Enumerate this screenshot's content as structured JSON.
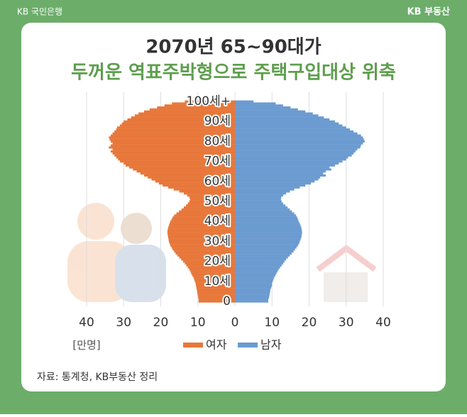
{
  "header": {
    "left": "KB 국민은행",
    "right": "KB 부동산"
  },
  "chart_data": {
    "type": "pyramid",
    "title": "2070년 65~90대가",
    "subtitle": "두꺼운 역표주박형으로 주택구입대상 위축",
    "unit": "[만명]",
    "source": "자료: 통계청, KB부동산 정리",
    "categories": [
      "0",
      null,
      null,
      null,
      null,
      null,
      null,
      null,
      null,
      null,
      "10세",
      null,
      null,
      null,
      null,
      null,
      null,
      null,
      null,
      null,
      "20세",
      null,
      null,
      null,
      null,
      null,
      null,
      null,
      null,
      null,
      "30세",
      null,
      null,
      null,
      null,
      null,
      null,
      null,
      null,
      null,
      "40세",
      null,
      null,
      null,
      null,
      null,
      null,
      null,
      null,
      null,
      "50세",
      null,
      null,
      null,
      null,
      null,
      null,
      null,
      null,
      null,
      "60세",
      null,
      null,
      null,
      null,
      null,
      null,
      null,
      null,
      null,
      "70세",
      null,
      null,
      null,
      null,
      null,
      null,
      null,
      null,
      null,
      "80세",
      null,
      null,
      null,
      null,
      null,
      null,
      null,
      null,
      null,
      "90세",
      null,
      null,
      null,
      null,
      null,
      null,
      null,
      null,
      null,
      "100세+"
    ],
    "series": [
      {
        "name": "여자",
        "color": "#e8773a",
        "side": "left",
        "values": [
          9.8,
          9.8,
          9.9,
          10,
          10.1,
          10.2,
          10.3,
          10.4,
          10.5,
          10.6,
          10.8,
          11,
          11.2,
          11.5,
          11.8,
          12,
          12.3,
          12.7,
          13.1,
          13.5,
          14,
          14.5,
          15,
          15.5,
          16,
          16.4,
          16.8,
          17.1,
          17.4,
          17.6,
          17.8,
          17.9,
          18,
          18.1,
          18.2,
          18.2,
          18.1,
          18,
          17.8,
          17.6,
          17.4,
          17.1,
          16.8,
          16.4,
          15.8,
          15.1,
          14.4,
          13.8,
          13.2,
          12.7,
          12.3,
          12.1,
          12.3,
          12.9,
          13.8,
          15,
          16.5,
          18,
          19.5,
          20.5,
          21.5,
          22.5,
          23.5,
          24.5,
          25.5,
          26.5,
          27.5,
          28.5,
          29.5,
          30,
          31,
          31.5,
          32,
          32.5,
          33,
          33.5,
          33,
          34,
          33.5,
          33,
          33.5,
          33.8,
          34,
          33.5,
          33,
          32.5,
          32,
          31.8,
          31,
          30.5,
          30,
          29,
          28,
          27,
          26,
          24.5,
          23,
          21,
          19,
          17,
          13.5
        ]
      },
      {
        "name": "남자",
        "color": "#6b9bd1",
        "side": "right",
        "values": [
          9,
          9,
          9.2,
          9.3,
          9.4,
          9.5,
          9.6,
          9.8,
          10,
          10,
          10.2,
          10.4,
          10.6,
          10.9,
          11.2,
          11.5,
          11.8,
          12.2,
          12.6,
          13,
          13.4,
          13.8,
          14.3,
          14.8,
          15.3,
          15.8,
          16.2,
          16.6,
          17,
          17.3,
          17.5,
          17.7,
          17.9,
          18,
          18.1,
          18.1,
          18,
          17.9,
          17.7,
          17.5,
          17.2,
          17,
          16.8,
          16.5,
          16,
          15.4,
          14.8,
          14.2,
          13.6,
          13,
          12.6,
          12.4,
          12.5,
          13,
          13.8,
          14.8,
          16,
          17.5,
          19,
          20.5,
          21.5,
          22.5,
          23,
          24.5,
          23.8,
          24.5,
          26,
          25.5,
          27,
          28,
          29,
          30,
          30.5,
          31.5,
          32,
          32.5,
          33,
          33.8,
          34,
          34.5,
          35,
          34.8,
          34.5,
          34,
          33,
          32,
          31,
          30,
          29,
          28,
          27,
          25.5,
          24,
          22.5,
          21,
          19,
          17,
          15,
          13,
          11,
          5
        ]
      }
    ],
    "xlim": [
      -40,
      40
    ],
    "xticks": [
      {
        "value": -40,
        "label": "40"
      },
      {
        "value": -30,
        "label": "30"
      },
      {
        "value": -20,
        "label": "20"
      },
      {
        "value": -10,
        "label": "10"
      },
      0,
      10,
      20,
      30,
      40
    ],
    "grid": true
  }
}
